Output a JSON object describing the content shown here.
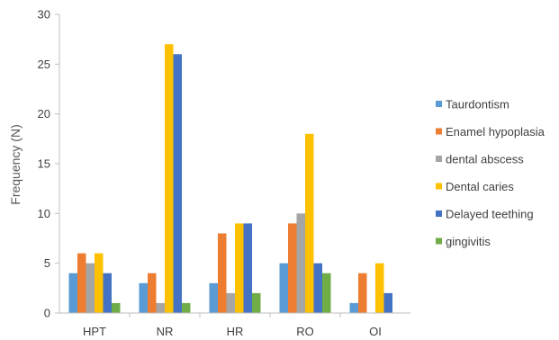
{
  "chart_data": {
    "type": "bar",
    "title": "",
    "xlabel": "",
    "ylabel": "Frequency (N)",
    "ylim": [
      0,
      30
    ],
    "yticks": [
      0,
      5,
      10,
      15,
      20,
      25,
      30
    ],
    "grid": false,
    "legend_position": "right",
    "categories": [
      "HPT",
      "NR",
      "HR",
      "RO",
      "OI"
    ],
    "series": [
      {
        "name": "Taurdontism",
        "color": "#5B9BD5",
        "values": [
          4,
          3,
          3,
          5,
          1
        ]
      },
      {
        "name": "Enamel hypoplasia",
        "color": "#ED7D31",
        "values": [
          6,
          4,
          8,
          9,
          4
        ]
      },
      {
        "name": "dental abscess",
        "color": "#A5A5A5",
        "values": [
          5,
          1,
          2,
          10,
          0
        ]
      },
      {
        "name": "Dental caries",
        "color": "#FFC000",
        "values": [
          6,
          27,
          9,
          18,
          5
        ]
      },
      {
        "name": "Delayed teething",
        "color": "#4472C4",
        "values": [
          4,
          26,
          9,
          5,
          2
        ]
      },
      {
        "name": "gingivitis",
        "color": "#70AD47",
        "values": [
          1,
          1,
          2,
          4,
          0
        ]
      }
    ]
  }
}
